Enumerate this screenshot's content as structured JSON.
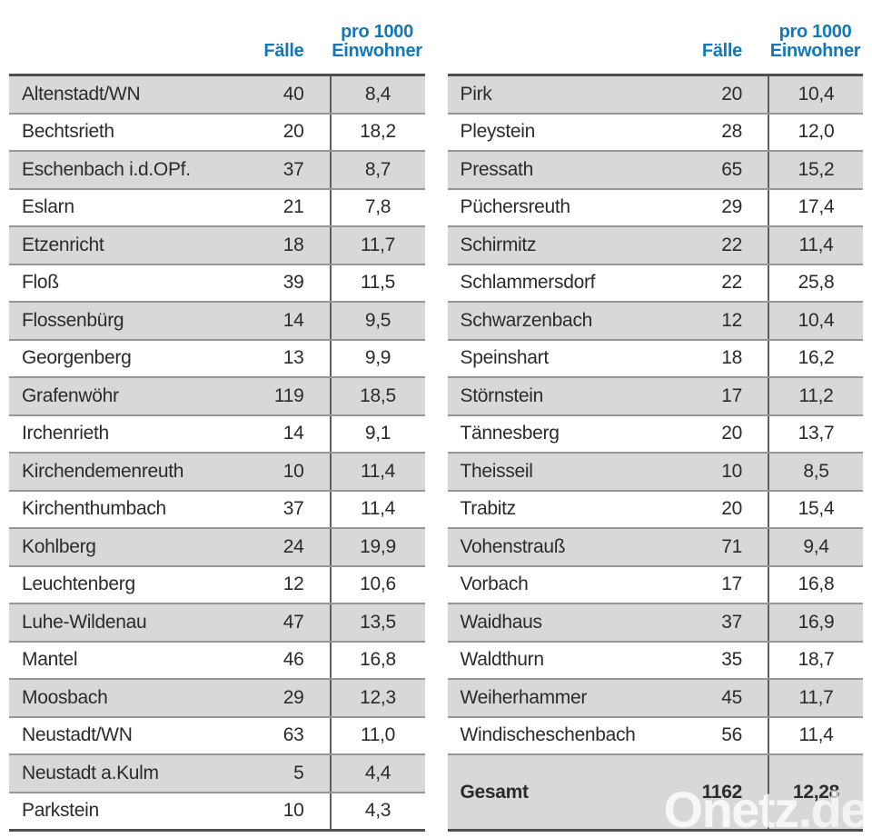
{
  "header": {
    "cases_label": "Fälle",
    "per1000_line1": "pro 1000",
    "per1000_line2": "Einwohner"
  },
  "colors": {
    "header_blue": "#1478b8",
    "row_gray": "#d8d8d8",
    "text_dark": "#2b2b2b",
    "outer_border": "#4f4f4f",
    "row_separator": "#969696",
    "column_divider": "#5e5e5e"
  },
  "chart_data": {
    "type": "table",
    "columns": [
      "",
      "Fälle",
      "pro 1000 Einwohner"
    ],
    "panels": [
      {
        "rows": [
          {
            "name": "Altenstadt/WN",
            "cases": "40",
            "per_1000": "8,4"
          },
          {
            "name": "Bechtsrieth",
            "cases": "20",
            "per_1000": "18,2"
          },
          {
            "name": "Eschenbach i.d.OPf.",
            "cases": "37",
            "per_1000": "8,7"
          },
          {
            "name": "Eslarn",
            "cases": "21",
            "per_1000": "7,8"
          },
          {
            "name": "Etzenricht",
            "cases": "18",
            "per_1000": "11,7"
          },
          {
            "name": "Floß",
            "cases": "39",
            "per_1000": "11,5"
          },
          {
            "name": "Flossenbürg",
            "cases": "14",
            "per_1000": "9,5"
          },
          {
            "name": "Georgenberg",
            "cases": "13",
            "per_1000": "9,9"
          },
          {
            "name": "Grafenwöhr",
            "cases": "119",
            "per_1000": "18,5"
          },
          {
            "name": "Irchenrieth",
            "cases": "14",
            "per_1000": "9,1"
          },
          {
            "name": "Kirchendemenreuth",
            "cases": "10",
            "per_1000": "11,4"
          },
          {
            "name": "Kirchenthumbach",
            "cases": "37",
            "per_1000": "11,4"
          },
          {
            "name": "Kohlberg",
            "cases": "24",
            "per_1000": "19,9"
          },
          {
            "name": "Leuchtenberg",
            "cases": "12",
            "per_1000": "10,6"
          },
          {
            "name": "Luhe-Wildenau",
            "cases": "47",
            "per_1000": "13,5"
          },
          {
            "name": "Mantel",
            "cases": "46",
            "per_1000": "16,8"
          },
          {
            "name": "Moosbach",
            "cases": "29",
            "per_1000": "12,3"
          },
          {
            "name": "Neustadt/WN",
            "cases": "63",
            "per_1000": "11,0"
          },
          {
            "name": "Neustadt a.Kulm",
            "cases": "5",
            "per_1000": "4,4"
          },
          {
            "name": "Parkstein",
            "cases": "10",
            "per_1000": "4,3"
          }
        ]
      },
      {
        "rows": [
          {
            "name": "Pirk",
            "cases": "20",
            "per_1000": "10,4"
          },
          {
            "name": "Pleystein",
            "cases": "28",
            "per_1000": "12,0"
          },
          {
            "name": "Pressath",
            "cases": "65",
            "per_1000": "15,2"
          },
          {
            "name": "Püchersreuth",
            "cases": "29",
            "per_1000": "17,4"
          },
          {
            "name": "Schirmitz",
            "cases": "22",
            "per_1000": "11,4"
          },
          {
            "name": "Schlammersdorf",
            "cases": "22",
            "per_1000": "25,8"
          },
          {
            "name": "Schwarzenbach",
            "cases": "12",
            "per_1000": "10,4"
          },
          {
            "name": "Speinshart",
            "cases": "18",
            "per_1000": "16,2"
          },
          {
            "name": "Störnstein",
            "cases": "17",
            "per_1000": "11,2"
          },
          {
            "name": "Tännesberg",
            "cases": "20",
            "per_1000": "13,7"
          },
          {
            "name": "Theisseil",
            "cases": "10",
            "per_1000": "8,5"
          },
          {
            "name": "Trabitz",
            "cases": "20",
            "per_1000": "15,4"
          },
          {
            "name": "Vohenstrauß",
            "cases": "71",
            "per_1000": "9,4"
          },
          {
            "name": "Vorbach",
            "cases": "17",
            "per_1000": "16,8"
          },
          {
            "name": "Waidhaus",
            "cases": "37",
            "per_1000": "16,9"
          },
          {
            "name": "Waldthurn",
            "cases": "35",
            "per_1000": "18,7"
          },
          {
            "name": "Weiherhammer",
            "cases": "45",
            "per_1000": "11,7"
          },
          {
            "name": "Windischeschenbach",
            "cases": "56",
            "per_1000": "11,4"
          }
        ],
        "total": {
          "label": "Gesamt",
          "cases": "1162",
          "per_1000": "12,28"
        }
      }
    ]
  },
  "watermark": {
    "brand": "Onetz",
    "suffix": ".de"
  }
}
